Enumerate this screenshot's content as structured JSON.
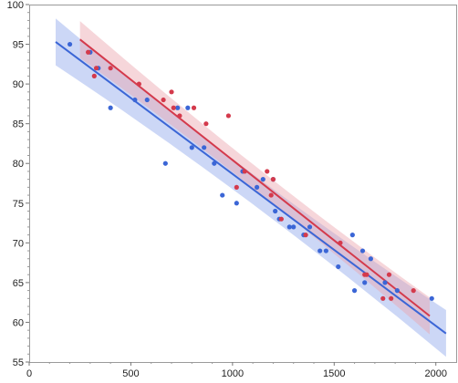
{
  "chart_data": {
    "type": "scatter",
    "title": "",
    "xlabel": "",
    "ylabel": "",
    "xlim": [
      0,
      2100
    ],
    "ylim": [
      55,
      100
    ],
    "grid": false,
    "x_ticks": [
      0,
      500,
      1000,
      1500,
      2000
    ],
    "y_ticks": [
      55,
      60,
      65,
      70,
      75,
      80,
      85,
      90,
      95,
      100
    ],
    "series": [
      {
        "color": "#3b66d6",
        "band_color": "#8fa6ec",
        "fit": {
          "x0": 130,
          "x1": 2050,
          "y0": 95.3,
          "y1": 58.6,
          "band_half_width": 1.9
        },
        "points": [
          [
            200,
            95
          ],
          [
            300,
            94
          ],
          [
            340,
            92
          ],
          [
            400,
            87
          ],
          [
            520,
            88
          ],
          [
            580,
            88
          ],
          [
            670,
            80
          ],
          [
            730,
            87
          ],
          [
            780,
            87
          ],
          [
            800,
            82
          ],
          [
            860,
            82
          ],
          [
            910,
            80
          ],
          [
            950,
            76
          ],
          [
            1020,
            75
          ],
          [
            1050,
            79
          ],
          [
            1120,
            77
          ],
          [
            1150,
            78
          ],
          [
            1200,
            78
          ],
          [
            1210,
            74
          ],
          [
            1230,
            73
          ],
          [
            1280,
            72
          ],
          [
            1300,
            72
          ],
          [
            1350,
            71
          ],
          [
            1380,
            72
          ],
          [
            1430,
            69
          ],
          [
            1460,
            69
          ],
          [
            1520,
            67
          ],
          [
            1590,
            71
          ],
          [
            1600,
            64
          ],
          [
            1640,
            69
          ],
          [
            1650,
            65
          ],
          [
            1680,
            68
          ],
          [
            1750,
            65
          ],
          [
            1810,
            64
          ],
          [
            1980,
            63
          ]
        ]
      },
      {
        "color": "#d43a4c",
        "band_color": "#eba3ac",
        "fit": {
          "x0": 250,
          "x1": 1970,
          "y0": 95.6,
          "y1": 60.8,
          "band_half_width": 1.5
        },
        "points": [
          [
            290,
            94
          ],
          [
            320,
            91
          ],
          [
            330,
            92
          ],
          [
            400,
            92
          ],
          [
            540,
            90
          ],
          [
            660,
            88
          ],
          [
            700,
            89
          ],
          [
            710,
            87
          ],
          [
            740,
            86
          ],
          [
            810,
            87
          ],
          [
            870,
            85
          ],
          [
            980,
            86
          ],
          [
            1020,
            77
          ],
          [
            1060,
            79
          ],
          [
            1170,
            79
          ],
          [
            1190,
            76
          ],
          [
            1200,
            78
          ],
          [
            1240,
            73
          ],
          [
            1360,
            71
          ],
          [
            1530,
            70
          ],
          [
            1650,
            66
          ],
          [
            1660,
            66
          ],
          [
            1740,
            63
          ],
          [
            1770,
            66
          ],
          [
            1780,
            63
          ],
          [
            1890,
            64
          ]
        ]
      }
    ]
  }
}
